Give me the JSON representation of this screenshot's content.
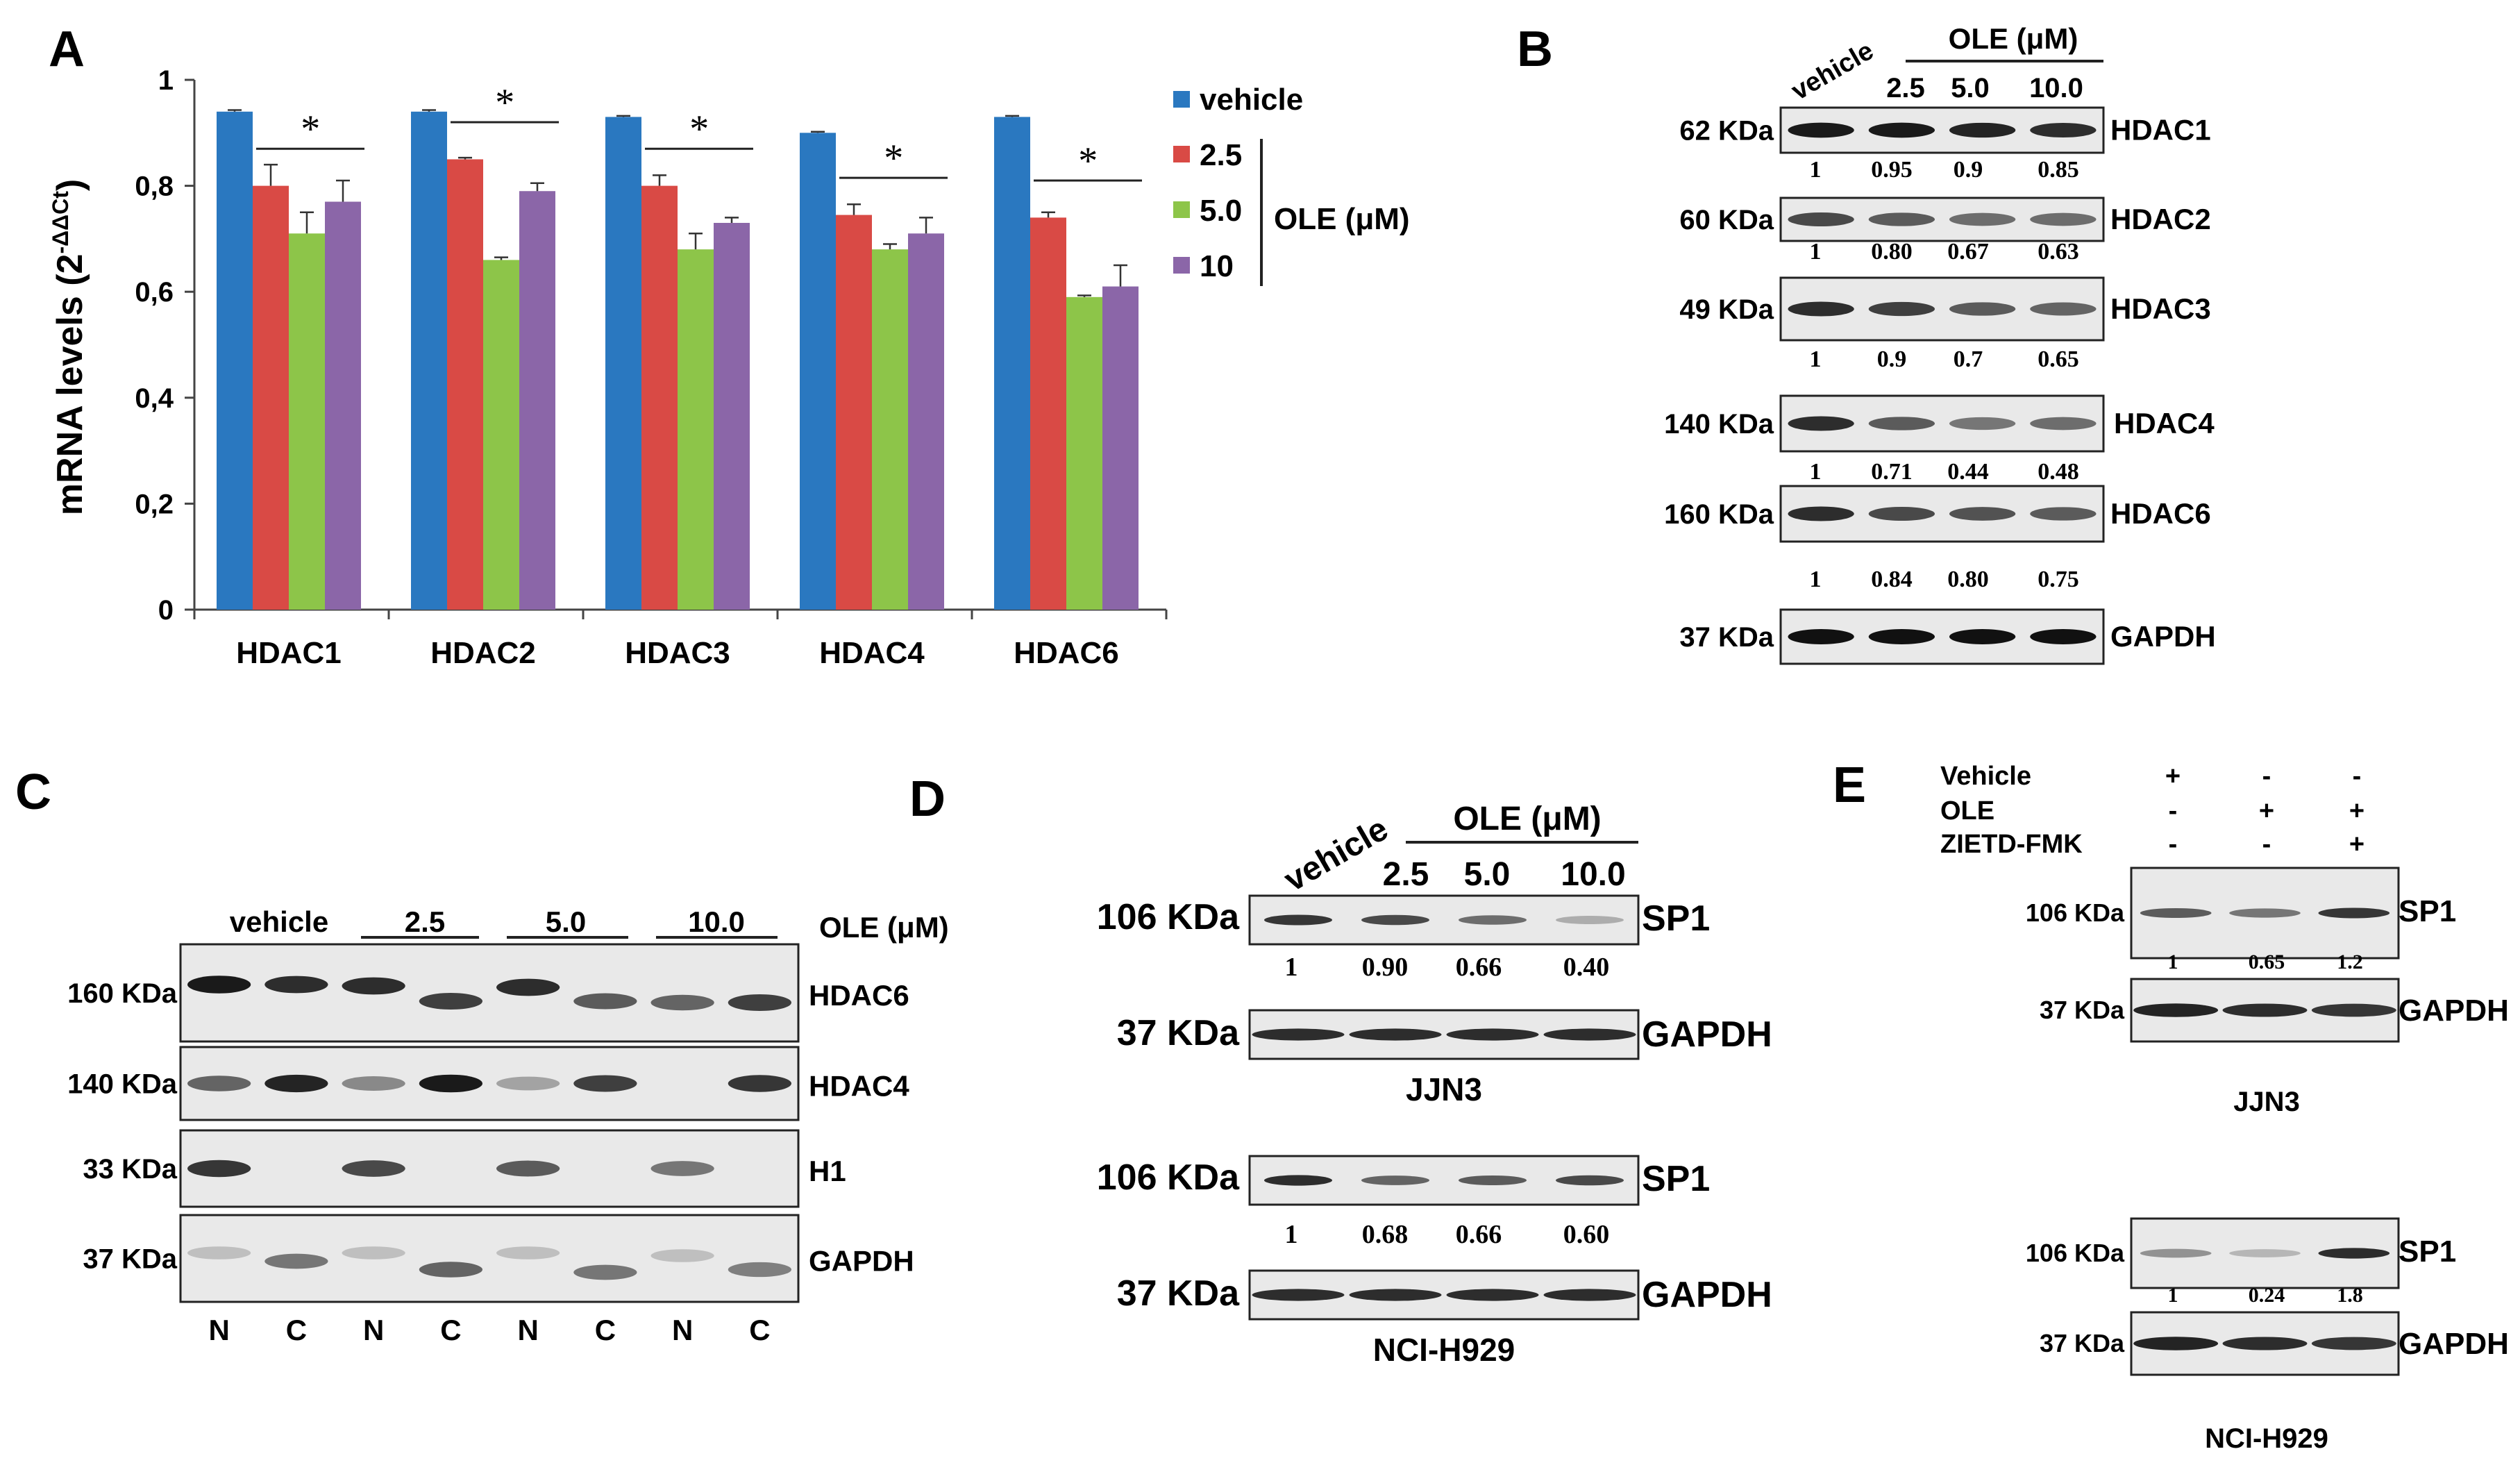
{
  "panels": {
    "a": "A",
    "b": "B",
    "c": "C",
    "d": "D",
    "e": "E"
  },
  "colors": {
    "vehicle": "#2a78c0",
    "ole_2_5": "#d94a45",
    "ole_5_0": "#8dc549",
    "ole_10": "#8b66a8"
  },
  "chart_data": {
    "type": "bar",
    "title": "",
    "ylabel": "mRNA levels (2-ΔΔCt)",
    "ylabel_main": "mRNA levels (2",
    "ylabel_sup": "-ΔΔCt",
    "ylabel_close": ")",
    "xlabel": "",
    "ylim": [
      0,
      1
    ],
    "yticks": [
      "0",
      "0,2",
      "0,4",
      "0,6",
      "0,8",
      "1"
    ],
    "ytick_values": [
      0,
      0.2,
      0.4,
      0.6,
      0.8,
      1.0
    ],
    "categories": [
      "HDAC1",
      "HDAC2",
      "HDAC3",
      "HDAC4",
      "HDAC6"
    ],
    "series": [
      {
        "name": "vehicle",
        "values": [
          0.94,
          0.94,
          0.93,
          0.9,
          0.93
        ],
        "errors": [
          0.003,
          0.003,
          0.002,
          0.002,
          0.002
        ]
      },
      {
        "name": "2.5",
        "values": [
          0.8,
          0.85,
          0.8,
          0.745,
          0.74
        ],
        "errors": [
          0.04,
          0.003,
          0.02,
          0.02,
          0.01
        ]
      },
      {
        "name": "5.0",
        "values": [
          0.71,
          0.66,
          0.68,
          0.68,
          0.59
        ],
        "errors": [
          0.04,
          0.005,
          0.03,
          0.01,
          0.003
        ]
      },
      {
        "name": "10",
        "values": [
          0.77,
          0.79,
          0.73,
          0.71,
          0.61
        ],
        "errors": [
          0.04,
          0.015,
          0.01,
          0.03,
          0.04
        ]
      }
    ],
    "significance": [
      "*",
      "*",
      "*",
      "*",
      "*"
    ],
    "legend_group_label": "OLE (μM)",
    "legend_position": "right"
  },
  "blot_b": {
    "vehicle": "vehicle",
    "header": "OLE (μM)",
    "doses": [
      "2.5",
      "5.0",
      "10.0"
    ],
    "rows": [
      {
        "mw": "62 KDa",
        "protein": "HDAC1",
        "q": [
          "1",
          "0.95",
          "0.9",
          "0.85"
        ]
      },
      {
        "mw": "60 KDa",
        "protein": "HDAC2",
        "q": [
          "1",
          "0.80",
          "0.67",
          "0.63"
        ]
      },
      {
        "mw": "49 KDa",
        "protein": "HDAC3",
        "q": [
          "1",
          "0.9",
          "0.7",
          "0.65"
        ]
      },
      {
        "mw": "140 KDa",
        "protein": "HDAC4",
        "q": [
          "1",
          "0.71",
          "0.44",
          "0.48"
        ]
      },
      {
        "mw": "160 KDa",
        "protein": "HDAC6",
        "q": [
          "1",
          "0.84",
          "0.80",
          "0.75"
        ]
      },
      {
        "mw": "37 KDa",
        "protein": "GAPDH",
        "q": []
      }
    ]
  },
  "blot_c": {
    "groups": [
      "vehicle",
      "2.5",
      "5.0",
      "10.0"
    ],
    "header": "OLE (μM)",
    "rows": [
      {
        "mw": "160 KDa",
        "protein": "HDAC6"
      },
      {
        "mw": "140 KDa",
        "protein": "HDAC4"
      },
      {
        "mw": "33 KDa",
        "protein": "H1"
      },
      {
        "mw": "37 KDa",
        "protein": "GAPDH"
      }
    ],
    "lanes": [
      "N",
      "C",
      "N",
      "C",
      "N",
      "C",
      "N",
      "C"
    ]
  },
  "blot_d": {
    "vehicle": "vehicle",
    "header": "OLE (μM)",
    "doses": [
      "2.5",
      "5.0",
      "10.0"
    ],
    "jjn3": {
      "sp1_mw": "106 KDa",
      "sp1": "SP1",
      "q": [
        "1",
        "0.90",
        "0.66",
        "0.40"
      ],
      "gapdh_mw": "37 KDa",
      "gapdh": "GAPDH",
      "cell": "JJN3"
    },
    "nci": {
      "sp1_mw": "106 KDa",
      "sp1": "SP1",
      "q": [
        "1",
        "0.68",
        "0.66",
        "0.60"
      ],
      "gapdh_mw": "37 KDa",
      "gapdh": "GAPDH",
      "cell": "NCI-H929"
    }
  },
  "blot_e": {
    "treatments": [
      {
        "label": "Vehicle",
        "signs": [
          "+",
          "-",
          "-"
        ]
      },
      {
        "label": "OLE",
        "signs": [
          "-",
          "+",
          "+"
        ]
      },
      {
        "label": "ZIETD-FMK",
        "signs": [
          "-",
          "-",
          "+"
        ]
      }
    ],
    "jjn3": {
      "sp1_mw": "106 KDa",
      "sp1": "SP1",
      "q": [
        "1",
        "0.65",
        "1.2"
      ],
      "gapdh_mw": "37 KDa",
      "gapdh": "GAPDH",
      "cell": "JJN3"
    },
    "nci": {
      "sp1_mw": "106 KDa",
      "sp1": "SP1",
      "q": [
        "1",
        "0.24",
        "1.8"
      ],
      "gapdh_mw": "37 KDa",
      "gapdh": "GAPDH",
      "cell": "NCI-H929"
    }
  }
}
